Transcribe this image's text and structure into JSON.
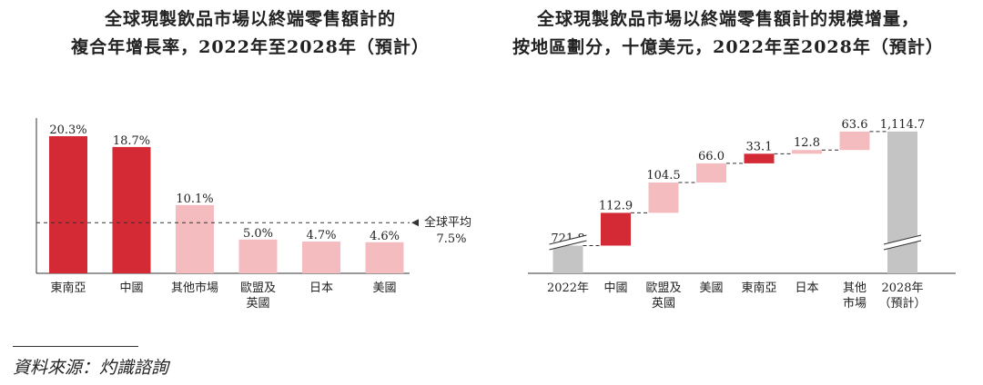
{
  "chart_data": [
    {
      "type": "bar",
      "title_lines": [
        "全球現製飲品市場以終端零售額計的",
        "複合年增長率，2022年至2028年（預計）"
      ],
      "categories": [
        [
          "東南亞"
        ],
        [
          "中國"
        ],
        [
          "其他市場"
        ],
        [
          "歐盟及",
          "英國"
        ],
        [
          "日本"
        ],
        [
          "美國"
        ]
      ],
      "values": [
        20.3,
        18.7,
        10.1,
        5.0,
        4.7,
        4.6
      ],
      "value_labels": [
        "20.3%",
        "18.7%",
        "10.1%",
        "5.0%",
        "4.7%",
        "4.6%"
      ],
      "bar_colors": [
        "#d42a36",
        "#d42a36",
        "#f5bcc0",
        "#f5bcc0",
        "#f5bcc0",
        "#f5bcc0"
      ],
      "reference_line": {
        "value": 7.5,
        "label_lines": [
          "全球平均",
          "7.5%"
        ]
      },
      "ylim": [
        0,
        21
      ]
    },
    {
      "type": "waterfall",
      "title_lines": [
        "全球現製飲品市場以終端零售額計的規模增量，",
        "按地區劃分，十億美元，2022年至2028年（預計）"
      ],
      "categories": [
        [
          "2022年"
        ],
        [
          "中國"
        ],
        [
          "歐盟及",
          "英國"
        ],
        [
          "美國"
        ],
        [
          "東南亞"
        ],
        [
          "日本"
        ],
        [
          "其他",
          "市場"
        ],
        [
          "2028年",
          "（預計）"
        ]
      ],
      "values": [
        721.8,
        112.9,
        104.5,
        66.0,
        33.1,
        12.8,
        63.6,
        1114.7
      ],
      "value_labels": [
        "721.8",
        "112.9",
        "104.5",
        "66.0",
        "33.1",
        "12.8",
        "63.6",
        "1,114.7"
      ],
      "kinds": [
        "total",
        "delta",
        "delta",
        "delta",
        "delta",
        "delta",
        "delta",
        "total"
      ],
      "bar_colors": [
        "#c4c4c4",
        "#d42a36",
        "#f5bcc0",
        "#f5bcc0",
        "#d42a36",
        "#f5bcc0",
        "#f5bcc0",
        "#c4c4c4"
      ],
      "axis_break": true
    }
  ],
  "source": "資料來源：灼識諮詢"
}
